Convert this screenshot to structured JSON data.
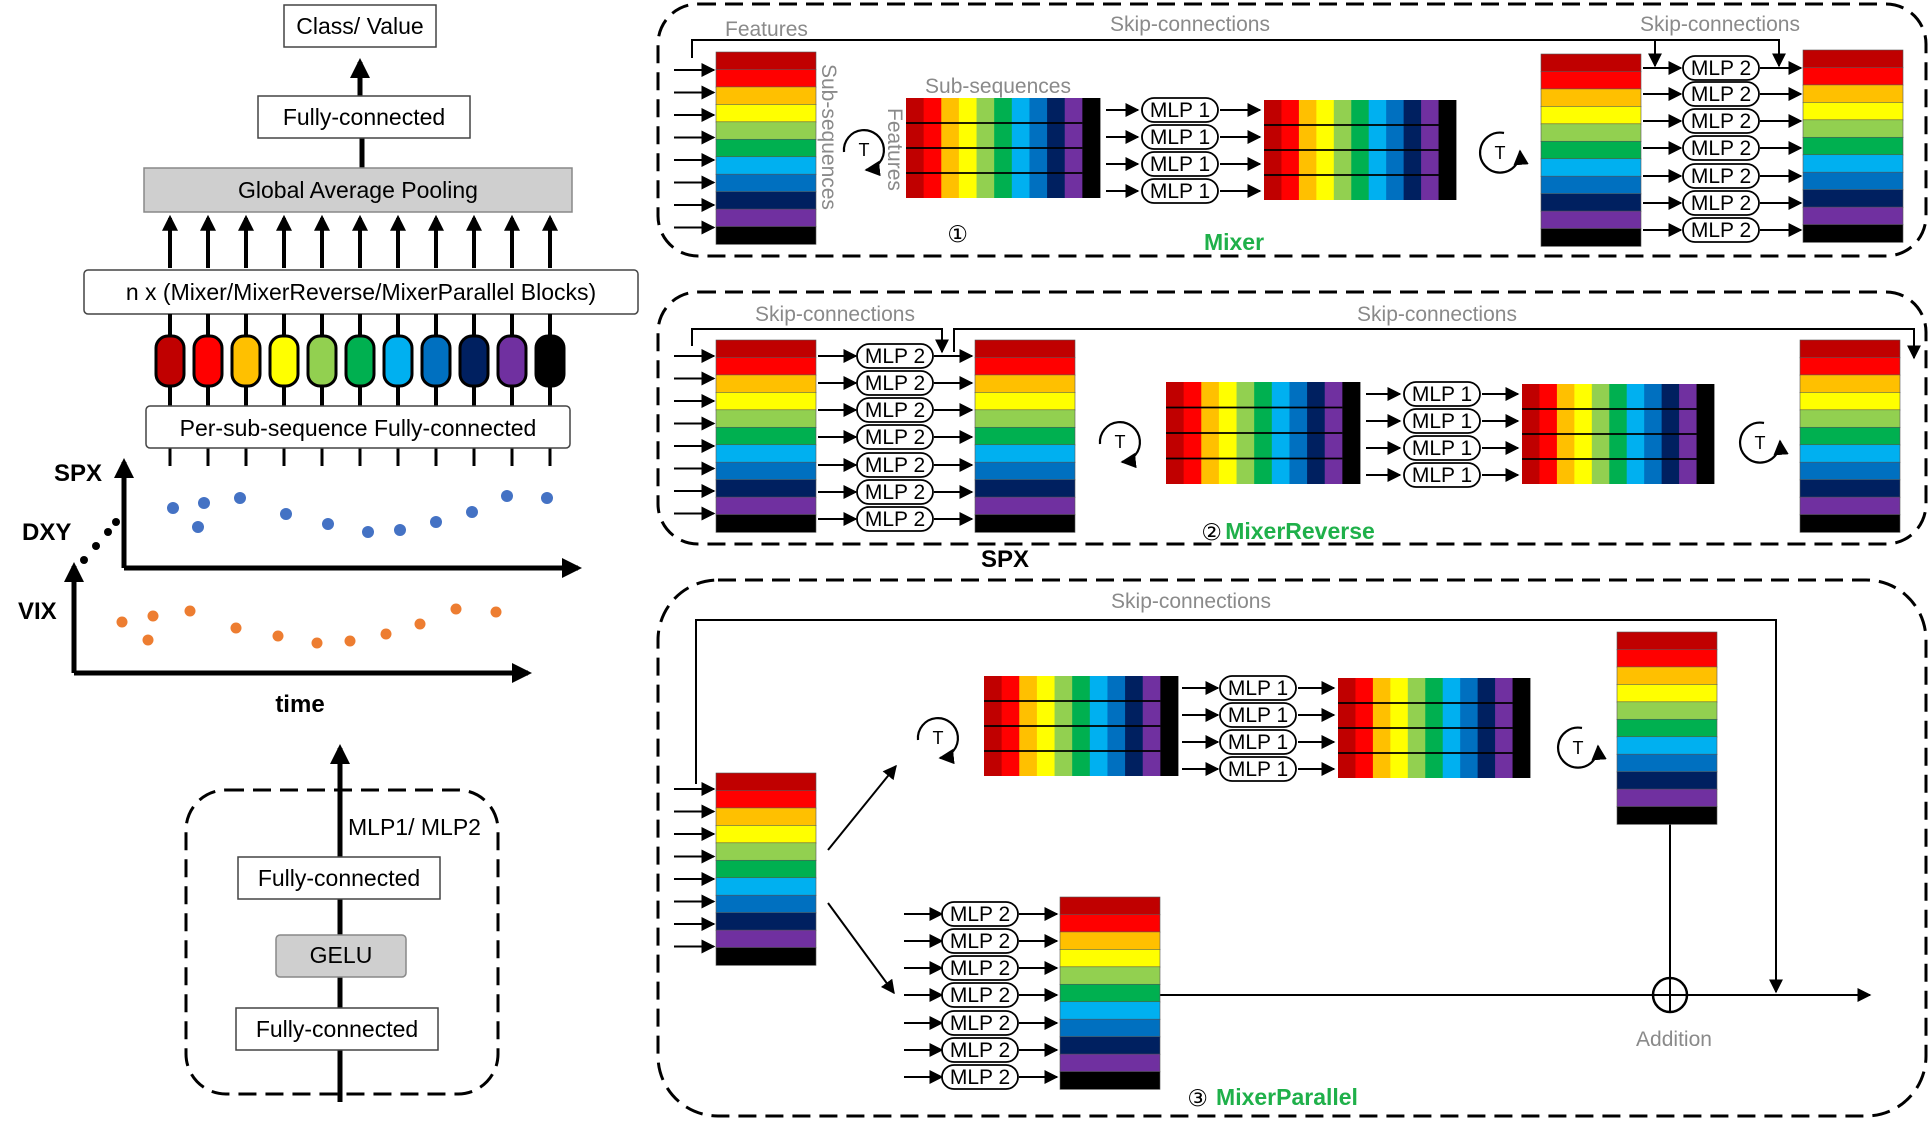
{
  "colors": [
    "#c00000",
    "#ff0000",
    "#ffc000",
    "#ffff00",
    "#92d050",
    "#00b050",
    "#00b0f0",
    "#0070c0",
    "#002060",
    "#7030a0",
    "#000000"
  ],
  "left": {
    "class_value": "Class/ Value",
    "fully_connected": "Fully-connected",
    "gap": "Global Average Pooling",
    "blocks": "n x (Mixer/MixerReverse/MixerParallel Blocks)",
    "per_sub": "Per-sub-sequence Fully-connected",
    "series": [
      "SPX",
      "DXY",
      "VIX"
    ],
    "time": "time",
    "mlp_box": {
      "title": "MLP1/ MLP2",
      "fc_top": "Fully-connected",
      "gelu": "GELU",
      "fc_bottom": "Fully-connected"
    }
  },
  "mixer": {
    "features": "Features",
    "sub_sequences_vertical": "Sub-sequences",
    "sub_sequences": "Sub-sequences",
    "features_vertical": "Features",
    "skip_left": "Skip-connections",
    "skip_right": "Skip-connections",
    "t": "T",
    "mlp1": "MLP 1",
    "mlp2": "MLP 2",
    "num": "①",
    "name": "Mixer"
  },
  "reverse": {
    "skip_left": "Skip-connections",
    "skip_right": "Skip-connections",
    "mlp1": "MLP 1",
    "mlp2": "MLP 2",
    "t": "T",
    "num": "②",
    "name": "MixerReverse",
    "spx": "SPX"
  },
  "parallel": {
    "skip": "Skip-connections",
    "mlp1": "MLP 1",
    "mlp2": "MLP 2",
    "t": "T",
    "addition": "Addition",
    "num": "③",
    "name": "MixerParallel"
  }
}
